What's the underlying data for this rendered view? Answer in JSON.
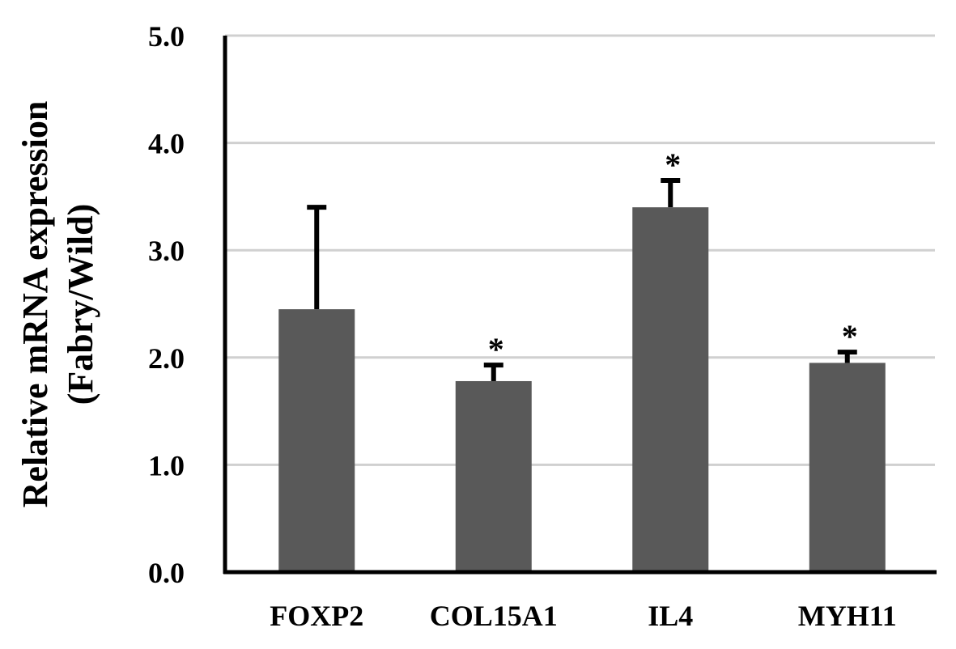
{
  "chart_data": {
    "type": "bar",
    "title": "",
    "xlabel": "",
    "ylabel": [
      "Relative mRNA expression",
      "(Fabry/Wild)"
    ],
    "categories": [
      "FOXP2",
      "COL15A1",
      "IL4",
      "MYH11"
    ],
    "values": [
      2.45,
      1.78,
      3.4,
      1.95
    ],
    "error_upper": [
      0.95,
      0.15,
      0.25,
      0.1
    ],
    "significance": [
      "",
      "*",
      "*",
      "*"
    ],
    "ylim": [
      0.0,
      5.0
    ],
    "yticks": [
      0.0,
      1.0,
      2.0,
      3.0,
      4.0,
      5.0
    ],
    "ytick_labels": [
      "0.0",
      "1.0",
      "2.0",
      "3.0",
      "4.0",
      "5.0"
    ],
    "grid": true,
    "bar_color": "#595959",
    "error_bar_color": "#000000",
    "grid_color": "#d0d0d0"
  }
}
